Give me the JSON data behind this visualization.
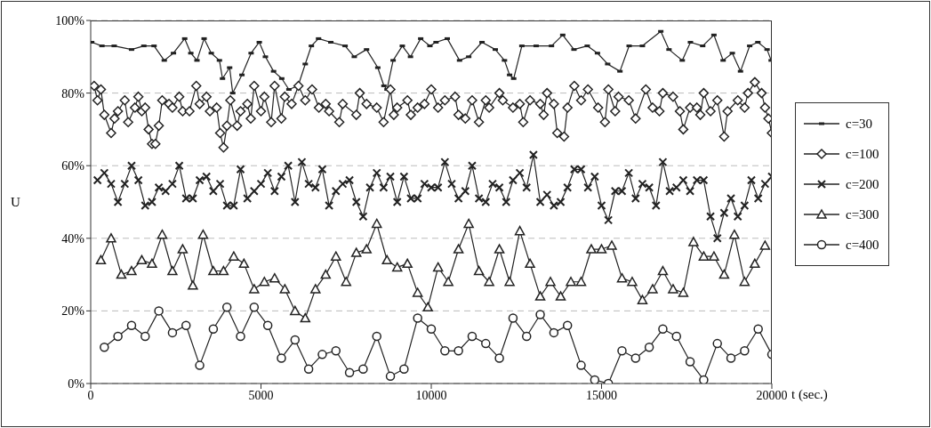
{
  "chart_data": {
    "type": "line",
    "xlabel": "t (sec.)",
    "ylabel": "U",
    "xlim": [
      0,
      20000
    ],
    "xticks": [
      0,
      5000,
      10000,
      15000,
      20000
    ],
    "ylim": [
      0,
      100
    ],
    "yticks": [
      {
        "value": 0,
        "label": "0%"
      },
      {
        "value": 20,
        "label": "20%"
      },
      {
        "value": 40,
        "label": "40%"
      },
      {
        "value": 60,
        "label": "60%"
      },
      {
        "value": 80,
        "label": "80%"
      },
      {
        "value": 100,
        "label": "100%"
      }
    ],
    "grid": "y",
    "legend": "right",
    "series": [
      {
        "name": "c=30",
        "color": "#222222",
        "marker": "square",
        "x": [
          30,
          330,
          690,
          1200,
          1560,
          1860,
          2160,
          2430,
          2760,
          2940,
          3120,
          3330,
          3540,
          3780,
          3870,
          4080,
          4170,
          4440,
          4710,
          4950,
          5130,
          5370,
          5610,
          5820,
          6090,
          6300,
          6480,
          6690,
          7050,
          7470,
          7740,
          8100,
          8430,
          8610,
          8700,
          8880,
          9150,
          9390,
          9690,
          9960,
          10140,
          10470,
          10830,
          11100,
          11490,
          11880,
          12150,
          12300,
          12420,
          12660,
          13080,
          13530,
          13860,
          14190,
          14580,
          14880,
          15180,
          15540,
          15810,
          16200,
          16740,
          16980,
          17370,
          17610,
          17970,
          18300,
          18570,
          18840,
          19080,
          19350,
          19590,
          19860,
          19980
        ],
        "values": [
          94,
          93,
          93,
          92,
          93,
          93,
          89,
          91,
          95,
          91,
          89,
          95,
          91,
          89,
          84,
          87,
          80,
          85,
          91,
          94,
          90,
          86,
          84,
          81,
          82,
          88,
          93,
          95,
          94,
          93,
          90,
          92,
          87,
          82,
          81,
          89,
          93,
          90,
          95,
          93,
          94,
          95,
          89,
          90,
          94,
          92,
          89,
          85,
          84,
          93,
          93,
          93,
          96,
          92,
          93,
          91,
          88,
          86,
          93,
          93,
          97,
          92,
          89,
          94,
          93,
          96,
          89,
          91,
          86,
          93,
          94,
          92,
          89
        ]
      },
      {
        "name": "c=100",
        "color": "#222222",
        "marker": "diamond",
        "x": [
          100,
          200,
          300,
          400,
          600,
          700,
          800,
          1000,
          1100,
          1300,
          1400,
          1500,
          1600,
          1700,
          1800,
          1900,
          2000,
          2100,
          2300,
          2400,
          2600,
          2700,
          2900,
          3100,
          3200,
          3400,
          3500,
          3700,
          3800,
          3900,
          4000,
          4100,
          4300,
          4400,
          4600,
          4700,
          4800,
          5000,
          5100,
          5300,
          5400,
          5600,
          5700,
          5900,
          6100,
          6300,
          6500,
          6700,
          6900,
          7000,
          7300,
          7400,
          7800,
          7900,
          8100,
          8400,
          8600,
          8800,
          8900,
          9000,
          9300,
          9400,
          9600,
          9800,
          10000,
          10200,
          10400,
          10700,
          10800,
          11000,
          11200,
          11400,
          11600,
          11700,
          12000,
          12100,
          12400,
          12600,
          12700,
          12900,
          13200,
          13300,
          13400,
          13600,
          13700,
          13900,
          14000,
          14200,
          14400,
          14600,
          14900,
          15100,
          15200,
          15400,
          15500,
          15800,
          16000,
          16300,
          16500,
          16700,
          16800,
          17100,
          17300,
          17400,
          17600,
          17800,
          17900,
          18000,
          18200,
          18400,
          18600,
          18700,
          19000,
          19200,
          19300,
          19500,
          19700,
          19800,
          19900,
          20000
        ],
        "values": [
          82,
          78,
          81,
          74,
          69,
          73,
          75,
          78,
          72,
          76,
          79,
          75,
          76,
          70,
          66,
          66,
          71,
          78,
          77,
          76,
          79,
          75,
          75,
          82,
          77,
          79,
          75,
          76,
          69,
          65,
          71,
          78,
          71,
          75,
          77,
          73,
          82,
          75,
          79,
          72,
          82,
          73,
          79,
          77,
          82,
          78,
          81,
          76,
          77,
          75,
          72,
          77,
          74,
          80,
          77,
          76,
          72,
          81,
          74,
          76,
          78,
          74,
          76,
          77,
          81,
          76,
          78,
          79,
          74,
          73,
          78,
          72,
          78,
          76,
          80,
          78,
          76,
          77,
          72,
          78,
          77,
          74,
          80,
          77,
          69,
          68,
          76,
          82,
          78,
          81,
          76,
          72,
          81,
          75,
          79,
          78,
          73,
          81,
          76,
          75,
          80,
          79,
          75,
          70,
          76,
          76,
          74,
          80,
          75,
          78,
          68,
          75,
          78,
          76,
          80,
          83,
          80,
          76,
          73,
          69
        ]
      },
      {
        "name": "c=200",
        "color": "#222222",
        "marker": "cross",
        "x": [
          200,
          400,
          600,
          800,
          1000,
          1200,
          1400,
          1600,
          1800,
          2000,
          2200,
          2400,
          2600,
          2800,
          3000,
          3200,
          3400,
          3600,
          3800,
          4000,
          4200,
          4400,
          4600,
          4800,
          5000,
          5200,
          5400,
          5600,
          5800,
          6000,
          6200,
          6400,
          6600,
          6800,
          7000,
          7200,
          7400,
          7600,
          7800,
          8000,
          8200,
          8400,
          8600,
          8800,
          9000,
          9200,
          9400,
          9600,
          9800,
          10000,
          10200,
          10400,
          10600,
          10800,
          11000,
          11200,
          11400,
          11600,
          11800,
          12000,
          12200,
          12400,
          12600,
          12800,
          13000,
          13200,
          13400,
          13600,
          13800,
          14000,
          14200,
          14400,
          14600,
          14800,
          15000,
          15200,
          15400,
          15600,
          15800,
          16000,
          16200,
          16400,
          16600,
          16800,
          17000,
          17200,
          17400,
          17600,
          17800,
          18000,
          18200,
          18400,
          18600,
          18800,
          19000,
          19200,
          19400,
          19600,
          19800,
          20000
        ],
        "values": [
          56,
          58,
          55,
          50,
          55,
          60,
          56,
          49,
          50,
          54,
          53,
          55,
          60,
          51,
          51,
          56,
          57,
          53,
          55,
          49,
          49,
          59,
          51,
          53,
          55,
          58,
          53,
          57,
          60,
          50,
          61,
          55,
          54,
          59,
          49,
          53,
          55,
          56,
          50,
          46,
          54,
          58,
          54,
          57,
          50,
          57,
          51,
          51,
          55,
          54,
          54,
          61,
          55,
          51,
          53,
          60,
          51,
          50,
          55,
          54,
          50,
          56,
          58,
          54,
          63,
          50,
          52,
          49,
          50,
          54,
          59,
          59,
          54,
          57,
          49,
          45,
          53,
          53,
          58,
          51,
          55,
          54,
          49,
          61,
          53,
          54,
          56,
          53,
          56,
          56,
          46,
          40,
          47,
          51,
          46,
          49,
          56,
          51,
          55,
          57
        ]
      },
      {
        "name": "c=300",
        "color": "#222222",
        "marker": "triangle",
        "x": [
          300,
          600,
          900,
          1200,
          1500,
          1800,
          2100,
          2400,
          2700,
          3000,
          3300,
          3600,
          3900,
          4200,
          4500,
          4800,
          5100,
          5400,
          5700,
          6000,
          6300,
          6600,
          6900,
          7200,
          7500,
          7800,
          8100,
          8400,
          8700,
          9000,
          9300,
          9600,
          9900,
          10200,
          10500,
          10800,
          11100,
          11400,
          11700,
          12000,
          12300,
          12600,
          12900,
          13200,
          13500,
          13800,
          14100,
          14400,
          14700,
          15000,
          15300,
          15600,
          15900,
          16200,
          16500,
          16800,
          17100,
          17400,
          17700,
          18000,
          18300,
          18600,
          18900,
          19200,
          19500,
          19800
        ],
        "values": [
          34,
          40,
          30,
          31,
          34,
          33,
          41,
          31,
          37,
          27,
          41,
          31,
          31,
          35,
          33,
          26,
          28,
          29,
          26,
          20,
          18,
          26,
          30,
          35,
          28,
          36,
          37,
          44,
          34,
          32,
          33,
          25,
          21,
          32,
          28,
          37,
          44,
          31,
          28,
          37,
          28,
          42,
          33,
          24,
          28,
          24,
          28,
          28,
          37,
          37,
          38,
          29,
          28,
          23,
          26,
          31,
          26,
          25,
          39,
          35,
          35,
          30,
          41,
          28,
          33,
          38
        ]
      },
      {
        "name": "c=400",
        "color": "#222222",
        "marker": "circle",
        "x": [
          400,
          800,
          1200,
          1600,
          2000,
          2400,
          2800,
          3200,
          3600,
          4000,
          4400,
          4800,
          5200,
          5600,
          6000,
          6400,
          6800,
          7200,
          7600,
          8000,
          8400,
          8800,
          9200,
          9600,
          10000,
          10400,
          10800,
          11200,
          11600,
          12000,
          12400,
          12800,
          13200,
          13600,
          14000,
          14400,
          14800,
          15200,
          15600,
          16000,
          16400,
          16800,
          17200,
          17600,
          18000,
          18400,
          18800,
          19200,
          19600,
          20000
        ],
        "values": [
          10,
          13,
          16,
          13,
          20,
          14,
          16,
          5,
          15,
          21,
          13,
          21,
          16,
          7,
          12,
          4,
          8,
          9,
          3,
          4,
          13,
          2,
          4,
          18,
          15,
          9,
          9,
          13,
          11,
          7,
          18,
          13,
          19,
          14,
          16,
          5,
          1,
          0,
          9,
          7,
          10,
          15,
          13,
          6,
          1,
          11,
          7,
          9,
          15,
          8
        ]
      }
    ]
  }
}
